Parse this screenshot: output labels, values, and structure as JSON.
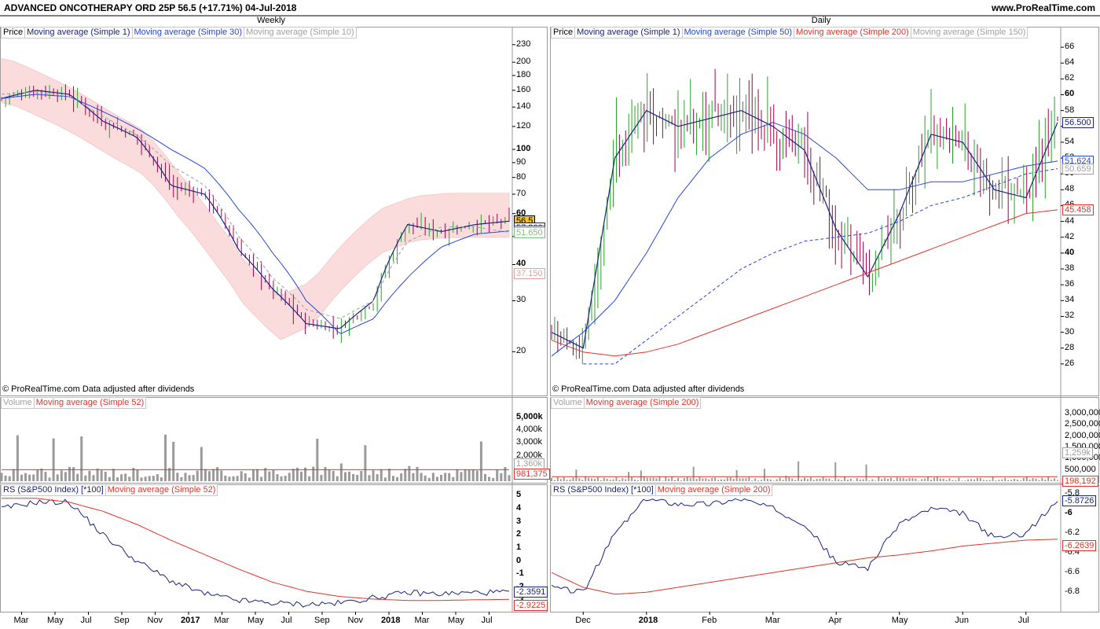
{
  "header": {
    "title": "ADVANCED ONCOTHERAPY ORD 25P   56.5 (+17.71%)   04-Jul-2018",
    "url": "www.ProRealTime.com"
  },
  "colors": {
    "price_up": "#2ca02c",
    "price_down": "#a0004a",
    "ma_short": "#1a237e",
    "ma_blue": "#2647d8",
    "ma_red": "#e0342a",
    "ma_gray": "#a0a0a0",
    "cloud_red": "#fbdcdc",
    "cloud_green": "#e6f6df",
    "volume_bar": "#9a9a9a",
    "rs_line": "#1a237e"
  },
  "footnote": "© ProRealTime.com  Data adjusted after dividends",
  "panels": {
    "weekly": {
      "title": "Weekly",
      "price_legend": [
        "Price",
        "Moving average (Simple 1)",
        "Moving average (Simple 30)",
        "Moving average (Simple 10)"
      ],
      "volume_legend": [
        "Volume",
        "Moving average (Simple 52)"
      ],
      "rs_legend": [
        "RS (S&P500 Index) [*100]",
        "Moving average (Simple 52)"
      ],
      "x_labels": [
        "Mar",
        "May",
        "Jul",
        "Sep",
        "Nov",
        "2017",
        "Mar",
        "May",
        "Jul",
        "Sep",
        "Nov",
        "2018",
        "Mar",
        "May",
        "Jul"
      ],
      "price_ticks": [
        "230",
        "200",
        "180",
        "160",
        "140",
        "120",
        "100",
        "90",
        "80",
        "70",
        "60",
        "50",
        "40",
        "30",
        "20"
      ],
      "volume_ticks": [
        "5,000k",
        "4,000k",
        "3,000k",
        "2,000k"
      ],
      "rs_ticks": [
        "5",
        "4",
        "3",
        "2",
        "1",
        "0",
        "-1",
        "-2",
        "-3"
      ],
      "price_badges": [
        "56.5",
        "57.300",
        "52.260",
        "51.650",
        "37.150"
      ],
      "volume_badges": [
        "1,360k",
        "981,375"
      ],
      "rs_badges": [
        "-2.3591",
        "-2.9225"
      ]
    },
    "daily": {
      "title": "Daily",
      "price_legend": [
        "Price",
        "Moving average (Simple 1)",
        "Moving average (Simple 50)",
        "Moving average (Simple 200)",
        "Moving average (Simple 150)"
      ],
      "volume_legend": [
        "Volume",
        "Moving average (Simple 200)"
      ],
      "rs_legend": [
        "RS (S&P500 Index) [*100]",
        "Moving average (Simple 200)"
      ],
      "x_labels": [
        "Dec",
        "2018",
        "Feb",
        "Mar",
        "Apr",
        "May",
        "Jun",
        "Jul"
      ],
      "price_ticks": [
        "66",
        "64",
        "62",
        "60",
        "58",
        "56",
        "54",
        "52",
        "50",
        "48",
        "46",
        "44",
        "42",
        "40",
        "38",
        "36",
        "34",
        "32",
        "30",
        "28",
        "26"
      ],
      "volume_ticks": [
        "3,000,000",
        "2,500,000",
        "2,000,000",
        "1,500,000",
        "1,000,000",
        "500,000"
      ],
      "rs_ticks": [
        "-5.8",
        "-6",
        "-6.2",
        "-6.4",
        "-6.6",
        "-6.8"
      ],
      "price_badges": [
        "56.5",
        "56.500",
        "51.624",
        "50.659",
        "45.458"
      ],
      "volume_badges": [
        "1,259k",
        "198,192"
      ],
      "rs_badges": [
        "-5.8726",
        "-6.2639"
      ]
    }
  },
  "chart_data": [
    {
      "type": "line",
      "title": "Weekly",
      "scale": "log",
      "ylim": [
        16,
        240
      ],
      "x": [
        "2016-02",
        "2016-03",
        "2016-05",
        "2016-07",
        "2016-09",
        "2016-11",
        "2017-01",
        "2017-03",
        "2017-05",
        "2017-07",
        "2017-09",
        "2017-11",
        "2018-01",
        "2018-03",
        "2018-05",
        "2018-07"
      ],
      "series": [
        {
          "name": "Price",
          "values": [
            150,
            160,
            155,
            125,
            110,
            75,
            70,
            45,
            33,
            25,
            24,
            30,
            55,
            52,
            55,
            56.5
          ]
        },
        {
          "name": "Moving average (Simple 30)",
          "values": [
            150,
            155,
            152,
            135,
            118,
            100,
            86,
            62,
            44,
            30,
            23,
            26,
            36,
            46,
            51,
            52.26
          ]
        },
        {
          "name": "Moving average (Simple 10)",
          "values": [
            155,
            158,
            152,
            130,
            112,
            88,
            75,
            50,
            36,
            28,
            26,
            30,
            48,
            54,
            54,
            51.65
          ]
        }
      ],
      "volume": {
        "ticks_k": [
          2000,
          3000,
          4000,
          5000
        ],
        "last": "1,360k",
        "ma": "981,375"
      },
      "rs": {
        "ylim": [
          -3.5,
          5.5
        ],
        "rs_last": -2.3591,
        "ma_last": -2.9225,
        "rs_values": [
          4.0,
          4.5,
          4.5,
          2.0,
          0.0,
          -1.5,
          -2.5,
          -3.0,
          -3.2,
          -3.3,
          -3.2,
          -2.8,
          -2.4,
          -2.5,
          -2.4,
          -2.36
        ],
        "ma_values": [
          4.8,
          4.8,
          4.5,
          3.8,
          2.8,
          1.6,
          0.5,
          -0.6,
          -1.6,
          -2.3,
          -2.7,
          -2.9,
          -3.0,
          -3.0,
          -2.95,
          -2.92
        ]
      }
    },
    {
      "type": "line",
      "title": "Daily",
      "scale": "linear",
      "ylim": [
        24,
        67
      ],
      "x": [
        "2017-11-15",
        "2017-12-01",
        "2017-12-15",
        "2018-01-01",
        "2018-01-15",
        "2018-02-01",
        "2018-02-15",
        "2018-03-01",
        "2018-03-15",
        "2018-04-01",
        "2018-04-15",
        "2018-05-01",
        "2018-05-15",
        "2018-06-01",
        "2018-06-15",
        "2018-07-01",
        "2018-07-04"
      ],
      "series": [
        {
          "name": "Price",
          "values": [
            30,
            28,
            52,
            58,
            56,
            57,
            58,
            56,
            53,
            43,
            37,
            45,
            55,
            54,
            48,
            47,
            56.5
          ]
        },
        {
          "name": "Moving average (Simple 50)",
          "values": [
            27,
            30,
            34,
            40,
            47,
            52,
            55,
            56.5,
            55,
            52,
            48,
            48,
            49,
            49,
            50,
            51,
            51.624
          ]
        },
        {
          "name": "Moving average (Simple 200)",
          "values": [
            29,
            27.5,
            27,
            27.5,
            28.5,
            30,
            31.5,
            33,
            34.5,
            36,
            37.5,
            39,
            40.5,
            42,
            43.5,
            45,
            45.458
          ]
        },
        {
          "name": "Moving average (Simple 150)",
          "values": [
            null,
            null,
            26,
            29,
            32,
            35,
            38,
            40,
            41.5,
            42,
            42.5,
            44,
            46,
            47,
            48.5,
            50,
            50.659
          ]
        }
      ],
      "volume": {
        "ticks": [
          500000,
          1000000,
          1500000,
          2000000,
          2500000,
          3000000
        ],
        "last": "1,259k",
        "ma": "198,192"
      },
      "rs": {
        "ylim": [
          -6.95,
          -5.75
        ],
        "rs_last": -5.8726,
        "ma_last": -6.2639,
        "rs_values": [
          -6.75,
          -6.8,
          -6.2,
          -5.85,
          -5.9,
          -5.9,
          -5.85,
          -5.95,
          -6.1,
          -6.5,
          -6.55,
          -6.1,
          -5.95,
          -6.0,
          -6.25,
          -6.2,
          -5.87
        ],
        "ma_values": [
          -6.6,
          -6.75,
          -6.82,
          -6.8,
          -6.75,
          -6.7,
          -6.65,
          -6.6,
          -6.55,
          -6.5,
          -6.45,
          -6.42,
          -6.38,
          -6.33,
          -6.3,
          -6.27,
          -6.26
        ]
      }
    }
  ]
}
